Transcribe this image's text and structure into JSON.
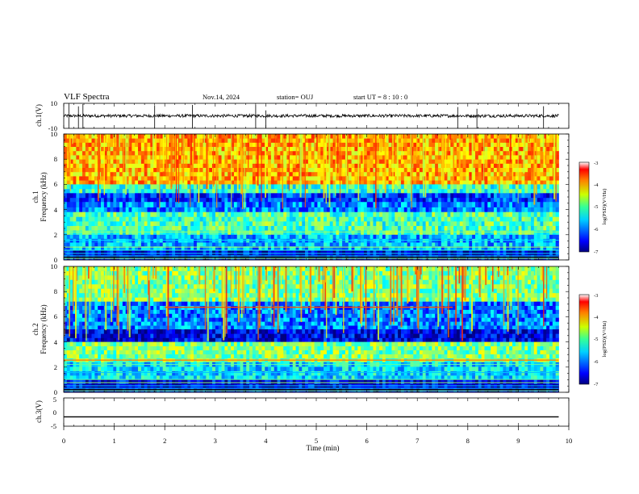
{
  "header": {
    "title": "VLF Spectra",
    "date": "Nov.14, 2024",
    "station": "station= OUJ",
    "start_ut": "start UT = 8 : 10 : 0"
  },
  "chart_data": [
    {
      "type": "line",
      "panel": "ch1-waveform",
      "ylabel": "ch.1(V)",
      "ylim": [
        -10,
        10
      ],
      "yticks": [
        "10",
        "-10"
      ],
      "xlim": [
        0,
        10
      ],
      "description_values": {
        "baseline_v": 0,
        "typical_amplitude_v": 2,
        "spike_times_min": [
          0.1,
          0.29,
          0.38,
          1.8,
          2.55,
          3.8,
          4.0,
          7.8,
          8.18,
          9.5
        ]
      },
      "grid": false
    },
    {
      "type": "heatmap",
      "panel": "ch1-spectrogram",
      "ylabel": "Frequency (kHz)",
      "channel_label": "ch.1",
      "xlim": [
        0,
        10
      ],
      "ylim": [
        0,
        10
      ],
      "yticks": [
        "0",
        "2",
        "4",
        "6",
        "8",
        "10"
      ],
      "data_end_min": 9.8,
      "colorbar": {
        "label": "log(PSD)(V²/Hz)",
        "range": [
          -7,
          -3
        ],
        "ticks": [
          "-3",
          "-4",
          "-5",
          "-6",
          "-7"
        ]
      },
      "bands": [
        {
          "f_khz": [
            6.0,
            10.0
          ],
          "level": -4.2
        },
        {
          "f_khz": [
            5.3,
            6.0
          ],
          "level": -5.3
        },
        {
          "f_khz": [
            4.6,
            5.3
          ],
          "level": -6.3
        },
        {
          "f_khz": [
            3.8,
            4.6
          ],
          "level": -6.0
        },
        {
          "f_khz": [
            2.0,
            3.8
          ],
          "level": -5.2
        },
        {
          "f_khz": [
            0.8,
            2.0
          ],
          "level": -5.8
        },
        {
          "f_khz": [
            0.0,
            0.8
          ],
          "level": -6.6
        }
      ]
    },
    {
      "type": "heatmap",
      "panel": "ch2-spectrogram",
      "ylabel": "Frequency (kHz)",
      "channel_label": "ch.2",
      "xlim": [
        0,
        10
      ],
      "ylim": [
        0,
        10
      ],
      "yticks": [
        "0",
        "2",
        "4",
        "6",
        "8",
        "10"
      ],
      "data_end_min": 9.8,
      "colorbar": {
        "label": "log(PSD)(V²/Hz)",
        "range": [
          -7,
          -3
        ],
        "ticks": [
          "-3",
          "-4",
          "-5",
          "-6",
          "-7"
        ]
      },
      "bands": [
        {
          "f_khz": [
            7.2,
            10.0
          ],
          "level": -5.0
        },
        {
          "f_khz": [
            5.0,
            7.2
          ],
          "level": -6.0
        },
        {
          "f_khz": [
            4.0,
            5.0
          ],
          "level": -6.6
        },
        {
          "f_khz": [
            2.4,
            4.0
          ],
          "level": -5.0
        },
        {
          "f_khz": [
            1.0,
            2.4
          ],
          "level": -5.6
        },
        {
          "f_khz": [
            0.0,
            1.0
          ],
          "level": -6.6
        }
      ],
      "lines": [
        {
          "f_khz": 6.8,
          "t_min": [
            2.0,
            7.7
          ],
          "level": -3.8
        },
        {
          "f_khz": 2.6,
          "t_min": [
            0.0,
            9.8
          ],
          "level": -4.0
        }
      ]
    },
    {
      "type": "line",
      "panel": "ch3-waveform",
      "ylabel": "ch.3(V)",
      "ylim": [
        -5,
        5
      ],
      "yticks": [
        "5",
        "0",
        "-5"
      ],
      "xlim": [
        0,
        10
      ],
      "x": [
        0,
        9.8
      ],
      "y": [
        -1.7,
        -1.7
      ],
      "xlabel": "Time (min)",
      "xticks": [
        "0",
        "1",
        "2",
        "3",
        "4",
        "5",
        "6",
        "7",
        "8",
        "9",
        "10"
      ]
    }
  ]
}
